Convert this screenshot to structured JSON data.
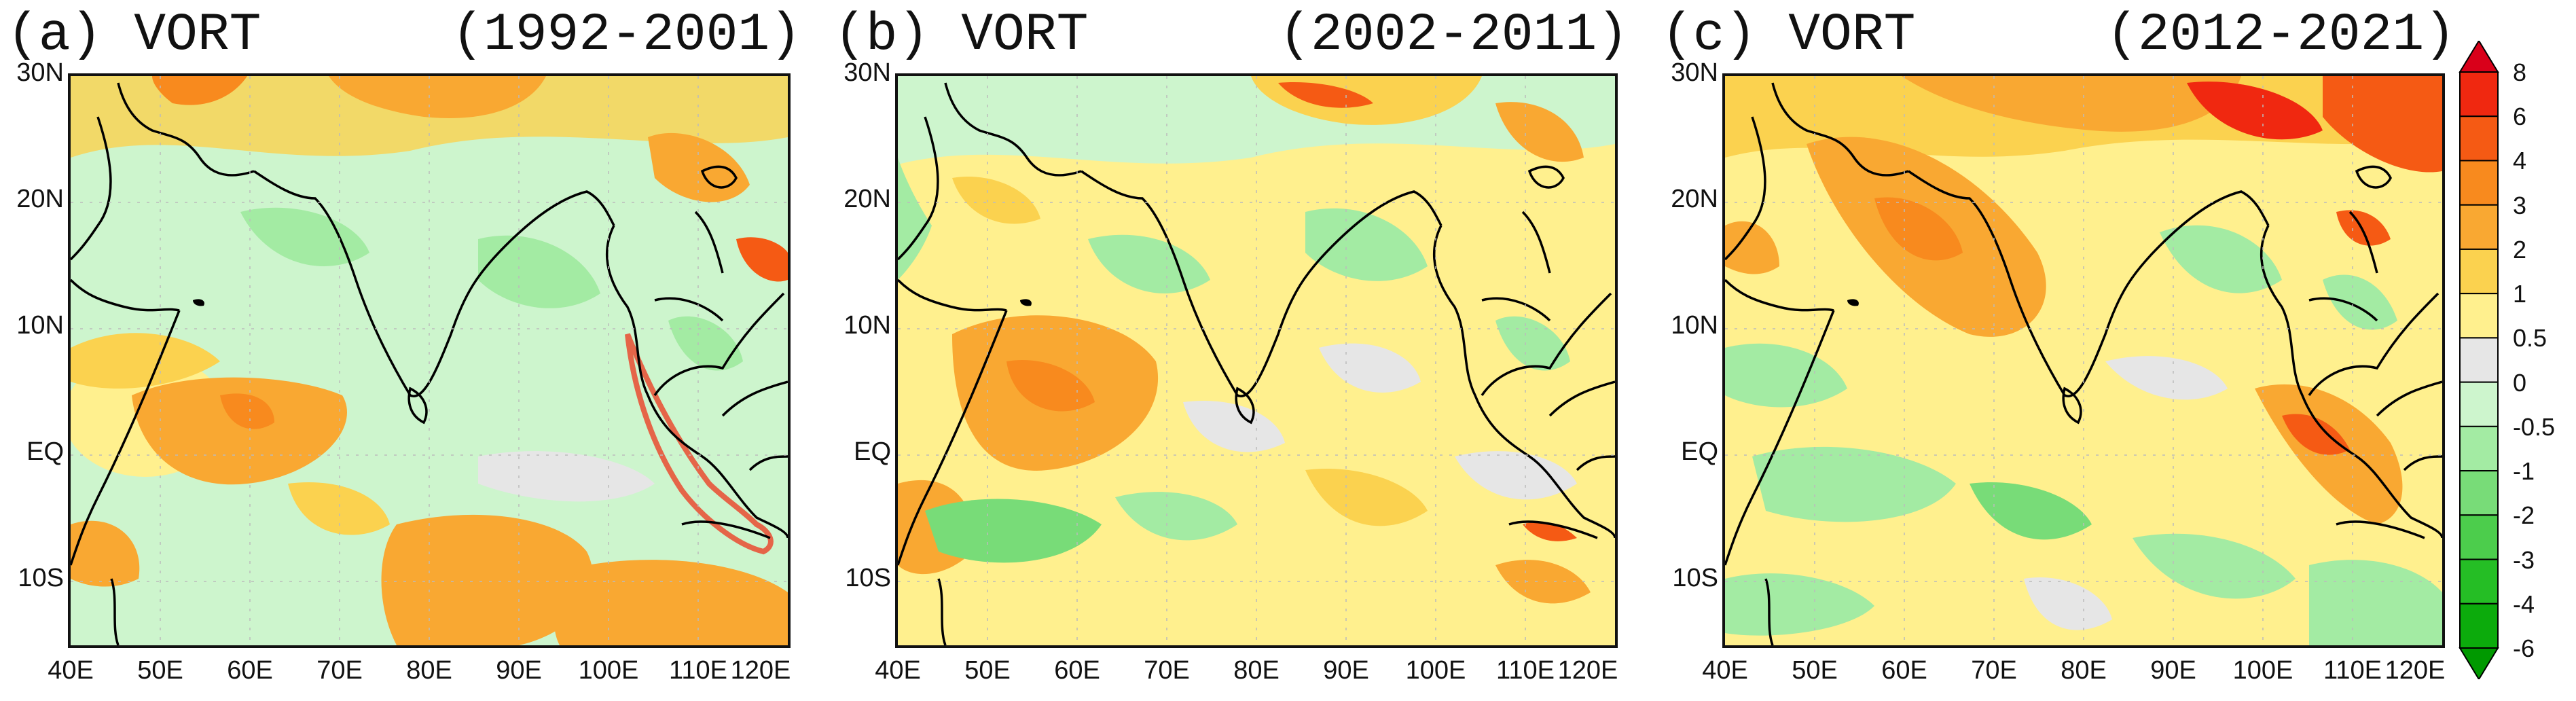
{
  "panels": [
    {
      "label": "(a) VORT",
      "period": "(1992-2001)"
    },
    {
      "label": "(b) VORT",
      "period": "(2002-2011)"
    },
    {
      "label": "(c) VORT",
      "period": "(2012-2021)"
    }
  ],
  "axes": {
    "y_ticks": [
      "30N",
      "20N",
      "10N",
      "EQ",
      "10S"
    ],
    "x_ticks": [
      "40E",
      "50E",
      "60E",
      "70E",
      "80E",
      "90E",
      "100E",
      "110E",
      "120E"
    ],
    "lon_range": [
      40,
      120
    ],
    "lat_range": [
      -15,
      30
    ]
  },
  "colorbar": {
    "labels": [
      "8",
      "6",
      "4",
      "3",
      "2",
      "1",
      "0.5",
      "0",
      "-0.5",
      "-1",
      "-2",
      "-3",
      "-4",
      "-6"
    ],
    "colors": [
      "#d9001a",
      "#f02810",
      "#f55a14",
      "#f88a1e",
      "#f9a832",
      "#fbd24f",
      "#fff08e",
      "#e6e6e6",
      "#cdf5cd",
      "#a3eba3",
      "#78dc78",
      "#4ccd4c",
      "#25be25",
      "#0cab0c",
      "#009900"
    ]
  },
  "colors": {
    "orange": "#f9a832",
    "light_orange": "#fbd24f",
    "yellow": "#fff08e",
    "grey": "#e6e6e6",
    "light_green": "#cdf5cd",
    "green": "#a3eba3",
    "mid_green": "#78dc78",
    "dark_green": "#4ccd4c",
    "red": "#f02810",
    "deep_orange": "#f55a14"
  }
}
